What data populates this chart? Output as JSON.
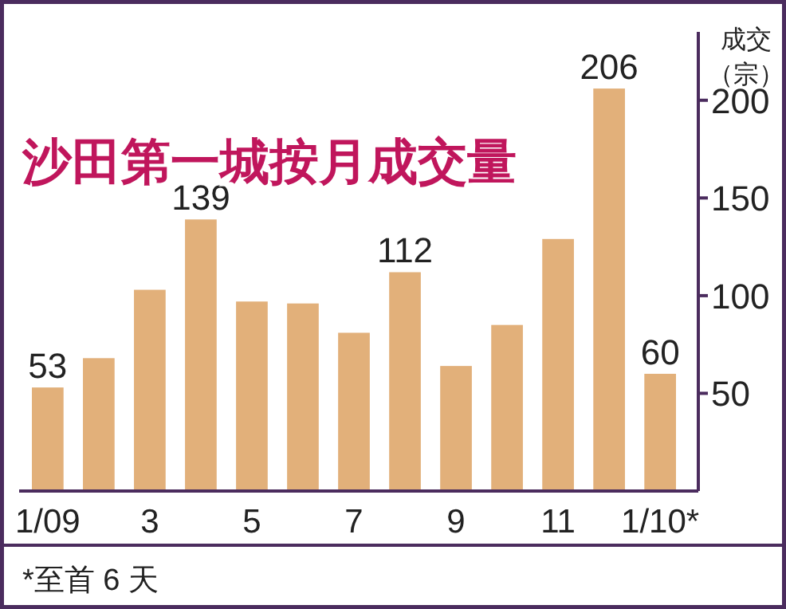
{
  "chart_data": {
    "type": "bar",
    "title": "沙田第一城按月成交量",
    "ylabel": "成交（宗）",
    "categories": [
      "1/09",
      null,
      "3",
      null,
      "5",
      null,
      "7",
      null,
      "9",
      null,
      "11",
      null,
      "1/10*"
    ],
    "values": [
      53,
      68,
      103,
      139,
      97,
      96,
      81,
      112,
      64,
      85,
      129,
      206,
      60
    ],
    "value_labels": [
      "53",
      null,
      null,
      "139",
      null,
      null,
      null,
      "112",
      null,
      null,
      null,
      "206",
      "60"
    ],
    "color": "#e2b07a",
    "ylim": [
      0,
      235
    ],
    "yticks": [
      50,
      100,
      150,
      200
    ],
    "annotations": [
      "*至首 6 天"
    ]
  }
}
